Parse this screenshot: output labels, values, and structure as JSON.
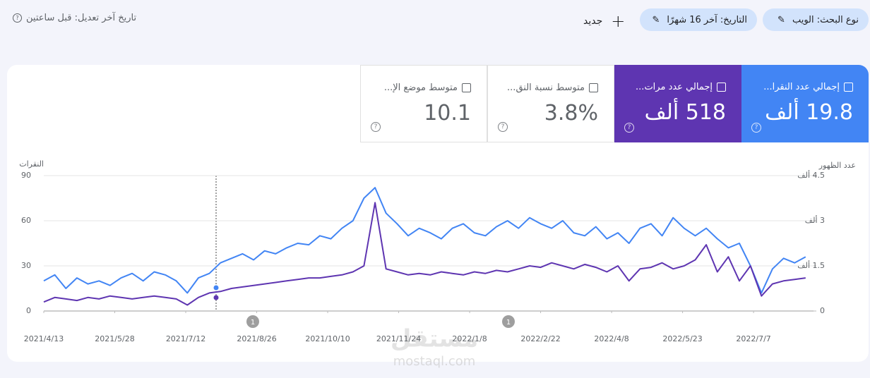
{
  "header": {
    "last_updated": "تاريخ آخر تعديل: قبل ساعتين",
    "new": "جديد",
    "filters": [
      "نوع البحث: الويب",
      "التاريخ: آخر 16 شهرًا"
    ]
  },
  "metrics": [
    {
      "label": "إجمالي عدد النقرا...",
      "value": "19.8 ألف"
    },
    {
      "label": "إجمالي عدد مرات...",
      "value": "518 ألف"
    },
    {
      "label": "متوسط نسبة النق...",
      "value": "3.8%"
    },
    {
      "label": "متوسط موضع الإ...",
      "value": "10.1"
    }
  ],
  "watermark": [
    "مستقل",
    "mostaql.com"
  ],
  "chart_data": {
    "type": "line",
    "ylabel": "النقرات",
    "y2label": "عدد الظهور",
    "annotations": [
      "1",
      "1"
    ],
    "x": [
      "2021/4/13",
      "2021/4/20",
      "2021/4/27",
      "2021/5/4",
      "2021/5/11",
      "2021/5/18",
      "2021/5/25",
      "2021/6/1",
      "2021/6/8",
      "2021/6/15",
      "2021/6/22",
      "2021/6/29",
      "2021/7/6",
      "2021/7/13",
      "2021/7/20",
      "2021/7/27",
      "2021/8/3",
      "2021/8/10",
      "2021/8/17",
      "2021/8/24",
      "2021/8/31",
      "2021/9/7",
      "2021/9/14",
      "2021/9/21",
      "2021/9/28",
      "2021/10/5",
      "2021/10/12",
      "2021/10/19",
      "2021/10/26",
      "2021/11/2",
      "2021/11/9",
      "2021/11/16",
      "2021/11/23",
      "2021/11/30",
      "2021/12/7",
      "2021/12/14",
      "2021/12/21",
      "2021/12/28",
      "2022/1/4",
      "2022/1/11",
      "2022/1/18",
      "2022/1/25",
      "2022/2/1",
      "2022/2/8",
      "2022/2/15",
      "2022/2/22",
      "2022/3/1",
      "2022/3/8",
      "2022/3/15",
      "2022/3/22",
      "2022/3/29",
      "2022/4/5",
      "2022/4/12",
      "2022/4/19",
      "2022/4/26",
      "2022/5/3",
      "2022/5/10",
      "2022/5/17",
      "2022/5/24",
      "2022/5/31",
      "2022/6/7",
      "2022/6/14",
      "2022/6/21",
      "2022/6/28",
      "2022/7/5",
      "2022/7/12",
      "2022/7/19",
      "2022/7/26",
      "2022/8/2",
      "2022/8/9"
    ],
    "xlim": [
      "2021/4/13",
      "2022/8/14"
    ],
    "xticks": [
      "2021/4/13",
      "2021/5/28",
      "2021/7/12",
      "2021/8/26",
      "2021/10/10",
      "2021/11/24",
      "2022/1/8",
      "2022/2/22",
      "2022/4/8",
      "2022/5/23",
      "2022/7/7"
    ],
    "ylim": [
      0,
      90
    ],
    "yticks": [
      0,
      30,
      60,
      90
    ],
    "y2lim": [
      0,
      4500
    ],
    "y2ticks": [
      0,
      {
        "value": 1500,
        "label": "1.5 ألف"
      },
      {
        "value": 3000,
        "label": "3 ألف"
      },
      {
        "value": 4500,
        "label": "4.5 ألف"
      }
    ],
    "grid": true,
    "series": [
      {
        "color": "#4285f4",
        "values": [
          20,
          24,
          15,
          22,
          18,
          20,
          17,
          22,
          25,
          20,
          26,
          24,
          20,
          12,
          22,
          25,
          32,
          35,
          38,
          34,
          40,
          38,
          42,
          45,
          44,
          50,
          48,
          55,
          60,
          75,
          82,
          65,
          58,
          50,
          55,
          52,
          48,
          55,
          58,
          52,
          50,
          56,
          60,
          55,
          62,
          58,
          55,
          60,
          52,
          50,
          56,
          48,
          52,
          45,
          55,
          58,
          50,
          62,
          55,
          50,
          55,
          48,
          42,
          45,
          30,
          12,
          28,
          35,
          32,
          36
        ]
      },
      {
        "color": "#5e35b1",
        "axis": "y2",
        "values": [
          300,
          450,
          400,
          350,
          450,
          400,
          500,
          450,
          400,
          450,
          500,
          450,
          400,
          200,
          450,
          600,
          650,
          750,
          800,
          850,
          900,
          950,
          1000,
          1050,
          1100,
          1100,
          1150,
          1200,
          1300,
          1500,
          3600,
          1400,
          1300,
          1200,
          1250,
          1200,
          1300,
          1250,
          1200,
          1300,
          1250,
          1350,
          1300,
          1400,
          1500,
          1450,
          1600,
          1500,
          1400,
          1550,
          1450,
          1300,
          1500,
          1000,
          1400,
          1450,
          1600,
          1400,
          1500,
          1700,
          2200,
          1300,
          1800,
          1000,
          1500,
          500,
          900,
          1000,
          1050,
          1100
        ]
      }
    ]
  }
}
